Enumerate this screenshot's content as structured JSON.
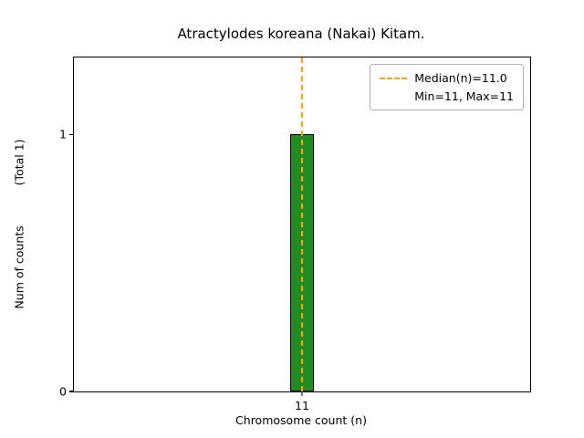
{
  "chart_data": {
    "type": "bar",
    "title": "Atractylodes koreana (Nakai) Kitam.",
    "xlabel": "Chromosome count (n)",
    "ylabel": "Num of counts",
    "ylabel_total": "(Total 1)",
    "categories": [
      "11"
    ],
    "values": [
      1
    ],
    "ylim": [
      0,
      1.3
    ],
    "yticks": [
      "0",
      "1"
    ],
    "median": 11.0,
    "min": 11,
    "max": 11,
    "legend": [
      "Median(n)=11.0",
      "Min=11, Max=11"
    ],
    "legend_position": "upper right",
    "grid": false,
    "bar_color": "#228B22",
    "bar_edge_color": "#000000",
    "median_line_color": "#FFA500"
  }
}
